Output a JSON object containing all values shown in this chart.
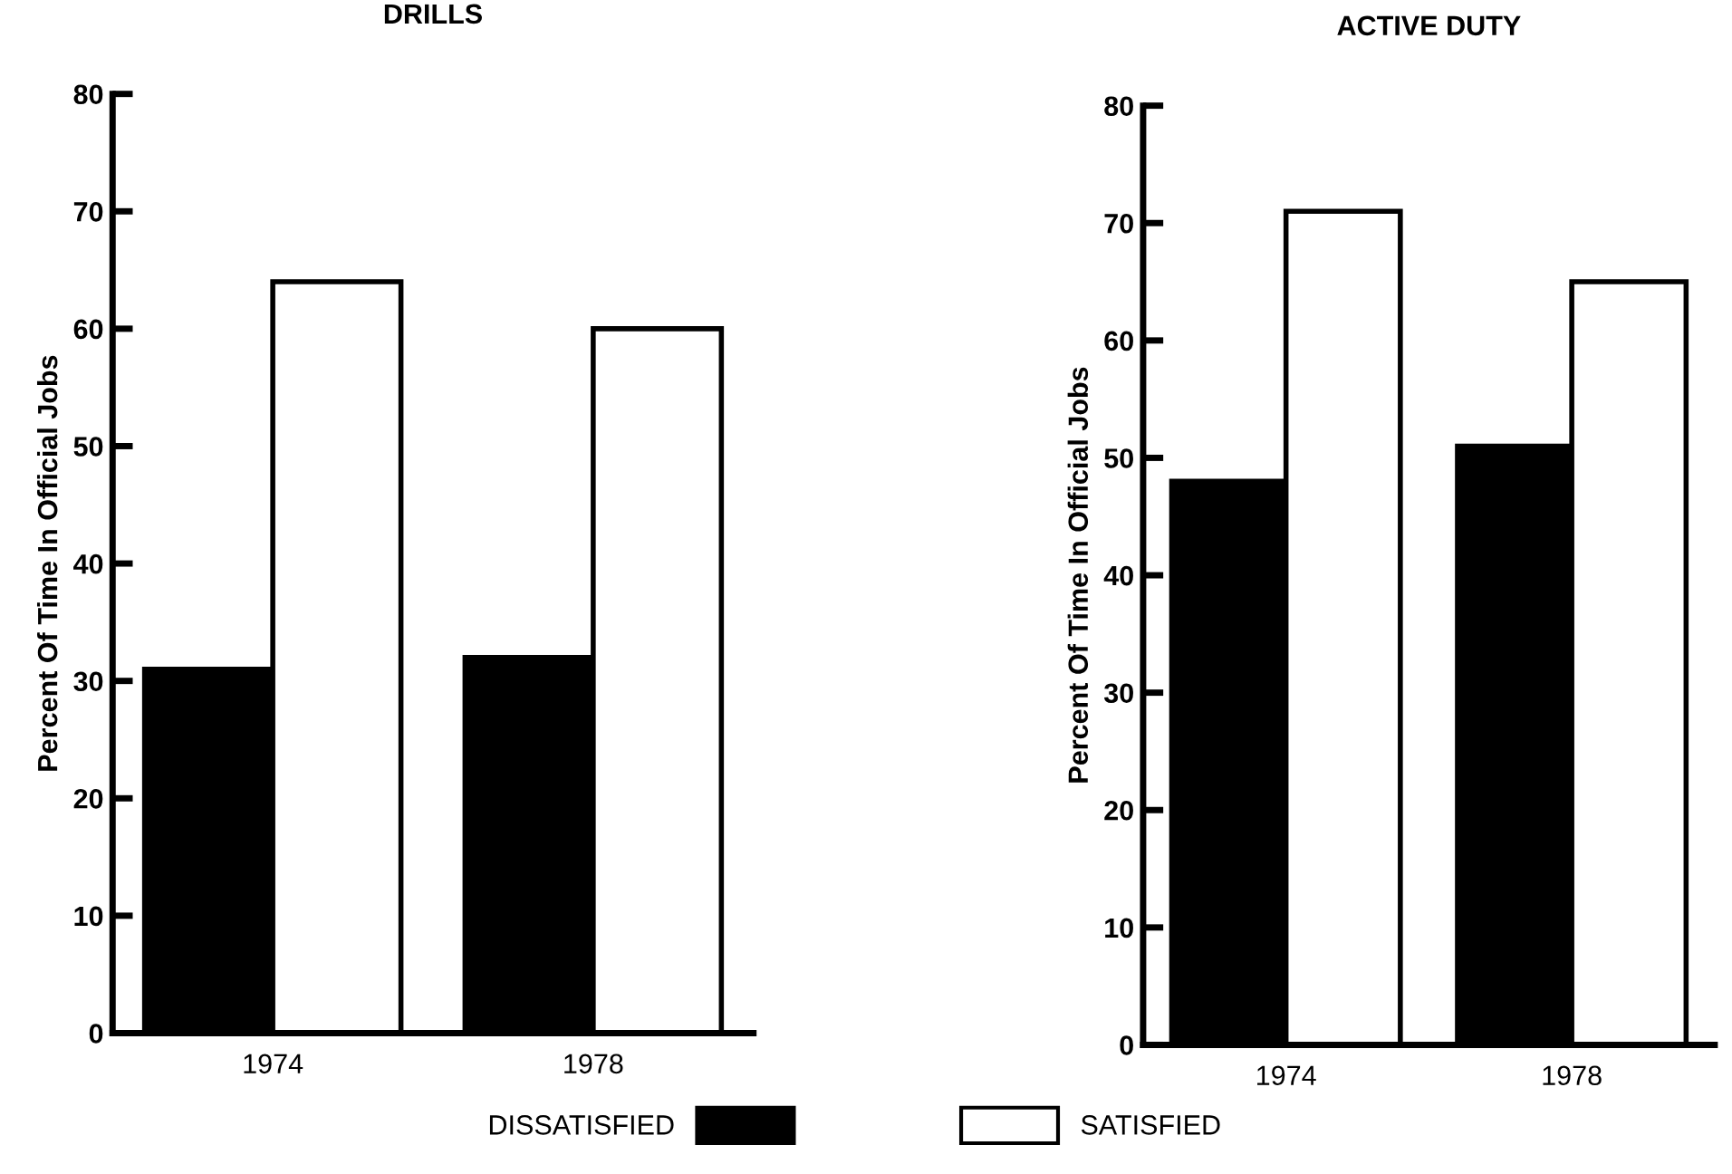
{
  "chart_data": [
    {
      "type": "bar",
      "title": "DRILLS",
      "ylabel": "Percent Of Time In Official Jobs",
      "categories": [
        "1974",
        "1978"
      ],
      "series": [
        {
          "name": "DISSATISFIED",
          "color": "#000000",
          "values": [
            31,
            32
          ]
        },
        {
          "name": "SATISFIED",
          "color": "#ffffff",
          "values": [
            64,
            60
          ]
        }
      ],
      "ylim": [
        0,
        80
      ],
      "yticks": [
        0,
        10,
        20,
        30,
        40,
        50,
        60,
        70,
        80
      ],
      "grid": false,
      "legend": "bottom"
    },
    {
      "type": "bar",
      "title": "ACTIVE DUTY",
      "ylabel": "Percent Of Time In Official Jobs",
      "categories": [
        "1974",
        "1978"
      ],
      "series": [
        {
          "color": "#000000",
          "values": [
            48,
            51
          ]
        },
        {
          "color": "#ffffff",
          "values": [
            71,
            65
          ]
        }
      ],
      "ylim": [
        0,
        80
      ],
      "yticks": [
        0,
        10,
        20,
        30,
        40,
        50,
        60,
        70,
        80
      ],
      "grid": false
    }
  ]
}
